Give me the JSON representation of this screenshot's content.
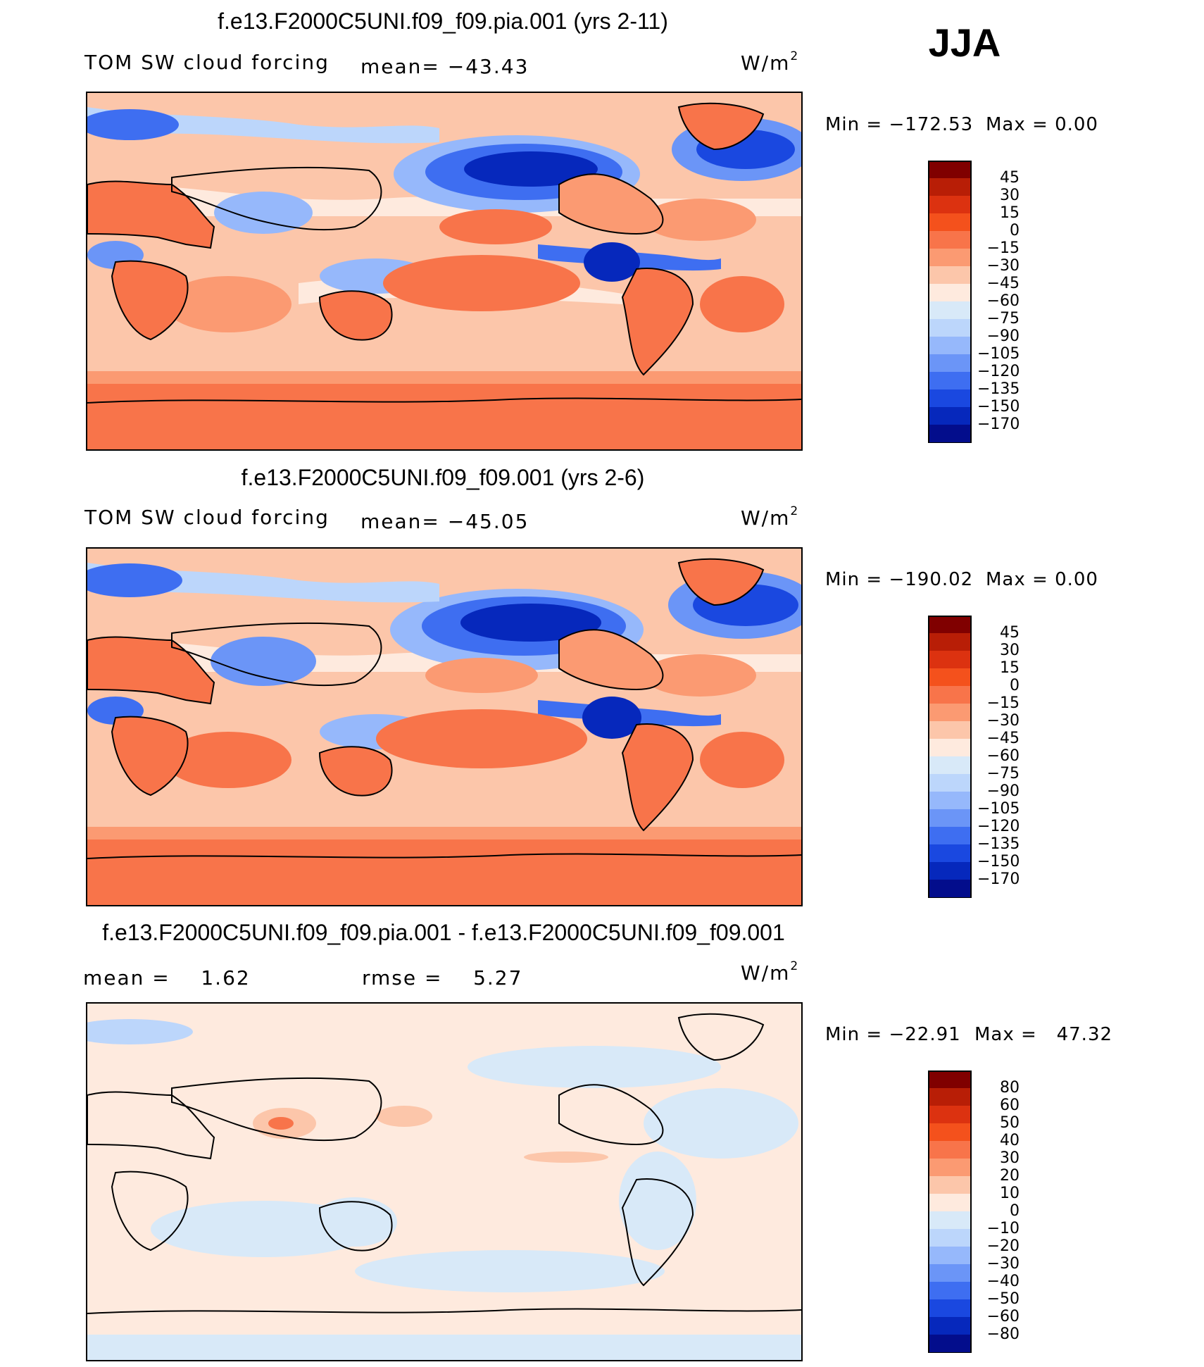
{
  "season": "JJA",
  "units": {
    "base": "W/m",
    "exp": "2"
  },
  "panels": [
    {
      "title": "f.e13.F2000C5UNI.f09_f09.pia.001 (yrs 2-11)",
      "variable": "TOM SW cloud forcing",
      "mean_text": "mean= −43.43",
      "min_text": "Min = −172.53",
      "max_text": "Max =    0.00",
      "colorbar": {
        "labels": [
          "45",
          "30",
          "15",
          "0",
          "−15",
          "−30",
          "−45",
          "−60",
          "−75",
          "−90",
          "−105",
          "−120",
          "−135",
          "−150",
          "−170"
        ],
        "colors": [
          "#800000",
          "#b81e06",
          "#dc3210",
          "#f4511c",
          "#f8744a",
          "#fb9a72",
          "#fcc6aa",
          "#feeade",
          "#d8e9f8",
          "#bcd6fb",
          "#96b8fb",
          "#6b95f7",
          "#3e6ef1",
          "#1a48e0",
          "#0628bc",
          "#030d8c"
        ]
      }
    },
    {
      "title": "f.e13.F2000C5UNI.f09_f09.001 (yrs 2-6)",
      "variable": "TOM SW cloud forcing",
      "mean_text": "mean= −45.05",
      "min_text": "Min = −190.02",
      "max_text": "Max =    0.00",
      "colorbar": {
        "labels": [
          "45",
          "30",
          "15",
          "0",
          "−15",
          "−30",
          "−45",
          "−60",
          "−75",
          "−90",
          "−105",
          "−120",
          "−135",
          "−150",
          "−170"
        ],
        "colors": [
          "#800000",
          "#b81e06",
          "#dc3210",
          "#f4511c",
          "#f8744a",
          "#fb9a72",
          "#fcc6aa",
          "#feeade",
          "#d8e9f8",
          "#bcd6fb",
          "#96b8fb",
          "#6b95f7",
          "#3e6ef1",
          "#1a48e0",
          "#0628bc",
          "#030d8c"
        ]
      }
    },
    {
      "title": "f.e13.F2000C5UNI.f09_f09.pia.001 - f.e13.F2000C5UNI.f09_f09.001",
      "mean_text": "mean =    1.62",
      "rmse_text": "rmse =    5.27",
      "min_text": "Min = −22.91",
      "max_text": "Max =   47.32",
      "colorbar": {
        "labels": [
          "80",
          "60",
          "50",
          "40",
          "30",
          "20",
          "10",
          "0",
          "−10",
          "−20",
          "−30",
          "−40",
          "−50",
          "−60",
          "−80"
        ],
        "colors": [
          "#800000",
          "#b81e06",
          "#dc3210",
          "#f4511c",
          "#f8744a",
          "#fb9a72",
          "#fcc6aa",
          "#feeade",
          "#d8e9f8",
          "#bcd6fb",
          "#96b8fb",
          "#6b95f7",
          "#3e6ef1",
          "#1a48e0",
          "#0628bc",
          "#030d8c"
        ]
      }
    }
  ]
}
